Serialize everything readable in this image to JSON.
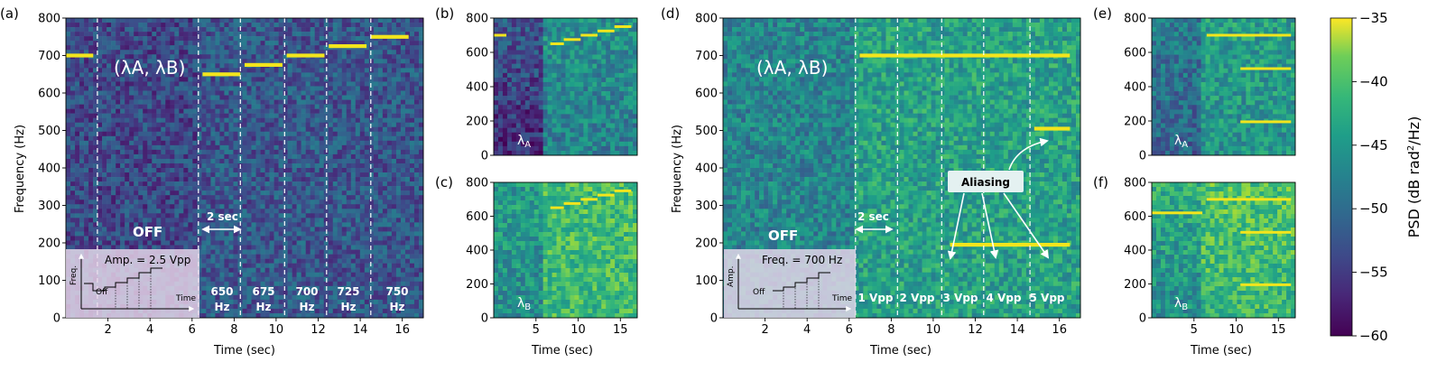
{
  "figure": {
    "colorbar": {
      "label": "PSD (dB rad²/Hz)",
      "label_main": "PSD (dB rad",
      "label_sup": "2",
      "label_end": "/Hz)",
      "min": -60,
      "max": -35,
      "ticks": [
        "−35",
        "−40",
        "−45",
        "−50",
        "−55",
        "−60"
      ],
      "colormap": "viridis"
    }
  },
  "chart_data": [
    {
      "panel": "(a)",
      "type": "heatmap",
      "xlabel": "Time (sec)",
      "ylabel": "Frequency (Hz)",
      "xlim": [
        0,
        17
      ],
      "ylim": [
        0,
        800
      ],
      "xticks": [
        "2",
        "4",
        "6",
        "8",
        "10",
        "12",
        "14",
        "16"
      ],
      "yticks": [
        "0",
        "100",
        "200",
        "300",
        "400",
        "500",
        "600",
        "700",
        "800"
      ],
      "grid": false,
      "background_level": -55,
      "tones": [
        {
          "t0": 0,
          "t1": 1.3,
          "freq": 700
        },
        {
          "t0": 6.5,
          "t1": 8.3,
          "freq": 650
        },
        {
          "t0": 8.5,
          "t1": 10.3,
          "freq": 675
        },
        {
          "t0": 10.5,
          "t1": 12.3,
          "freq": 700
        },
        {
          "t0": 12.5,
          "t1": 14.3,
          "freq": 725
        },
        {
          "t0": 14.5,
          "t1": 16.3,
          "freq": 750
        }
      ],
      "dividers": [
        1.5,
        6.3,
        8.3,
        10.4,
        12.4,
        14.5
      ],
      "annotations": {
        "lambda_label": "(λA, λB)",
        "off_label": "OFF",
        "duration_label": "2 sec",
        "inset_text": "Amp. = 2.5 Vpp",
        "inset_yaxis": "Freq.",
        "inset_xaxis": "Time",
        "inset_off": "Off",
        "segment_labels": [
          {
            "top": "650",
            "bottom": "Hz"
          },
          {
            "top": "675",
            "bottom": "Hz"
          },
          {
            "top": "700",
            "bottom": "Hz"
          },
          {
            "top": "725",
            "bottom": "Hz"
          },
          {
            "top": "750",
            "bottom": "Hz"
          }
        ]
      }
    },
    {
      "panel": "(b)",
      "type": "heatmap",
      "xlabel": "",
      "ylabel": "",
      "xlim": [
        0,
        17
      ],
      "ylim": [
        0,
        800
      ],
      "xticks": [],
      "yticks": [
        "0",
        "200",
        "400",
        "600",
        "800"
      ],
      "grid": false,
      "channel_label": "λA",
      "tones": [
        {
          "t0": 0,
          "t1": 1.5,
          "freq": 700
        },
        {
          "t0": 6.7,
          "t1": 8.3,
          "freq": 650
        },
        {
          "t0": 8.3,
          "t1": 10.3,
          "freq": 675
        },
        {
          "t0": 10.3,
          "t1": 12.3,
          "freq": 700
        },
        {
          "t0": 12.3,
          "t1": 14.3,
          "freq": 725
        },
        {
          "t0": 14.3,
          "t1": 16.3,
          "freq": 750
        }
      ]
    },
    {
      "panel": "(c)",
      "type": "heatmap",
      "xlabel": "Time (sec)",
      "ylabel": "",
      "xlim": [
        0,
        17
      ],
      "ylim": [
        0,
        800
      ],
      "xticks": [
        "5",
        "10",
        "15"
      ],
      "yticks": [
        "0",
        "200",
        "400",
        "600",
        "800"
      ],
      "grid": false,
      "channel_label": "λB",
      "tones": [
        {
          "t0": 6.7,
          "t1": 8.3,
          "freq": 650
        },
        {
          "t0": 8.3,
          "t1": 10.3,
          "freq": 675
        },
        {
          "t0": 10.3,
          "t1": 12.3,
          "freq": 700
        },
        {
          "t0": 12.3,
          "t1": 14.3,
          "freq": 725
        },
        {
          "t0": 14.3,
          "t1": 16.3,
          "freq": 750
        }
      ]
    },
    {
      "panel": "(d)",
      "type": "heatmap",
      "xlabel": "Time (sec)",
      "ylabel": "Frequency (Hz)",
      "xlim": [
        0,
        17
      ],
      "ylim": [
        0,
        800
      ],
      "xticks": [
        "2",
        "4",
        "6",
        "8",
        "10",
        "12",
        "14",
        "16"
      ],
      "yticks": [
        "0",
        "100",
        "200",
        "300",
        "400",
        "500",
        "600",
        "700",
        "800"
      ],
      "grid": false,
      "tones": [
        {
          "t0": 6.5,
          "t1": 16.5,
          "freq": 700
        },
        {
          "t0": 10.8,
          "t1": 16.5,
          "freq": 195
        },
        {
          "t0": 14.8,
          "t1": 16.5,
          "freq": 505
        }
      ],
      "dividers": [
        6.3,
        8.3,
        10.4,
        12.4,
        14.6
      ],
      "annotations": {
        "lambda_label": "(λA, λB)",
        "off_label": "OFF",
        "duration_label": "2 sec",
        "aliasing_label": "Aliasing",
        "inset_text": "Freq. = 700 Hz",
        "inset_yaxis": "Amp.",
        "inset_xaxis": "Time",
        "inset_off": "Off",
        "segment_labels": [
          "1 Vpp",
          "2 Vpp",
          "3 Vpp",
          "4 Vpp",
          "5 Vpp"
        ]
      }
    },
    {
      "panel": "(e)",
      "type": "heatmap",
      "xlabel": "",
      "ylabel": "",
      "xlim": [
        0,
        17
      ],
      "ylim": [
        0,
        800
      ],
      "xticks": [],
      "yticks": [
        "0",
        "200",
        "400",
        "600",
        "800"
      ],
      "grid": false,
      "channel_label": "λA",
      "tones": [
        {
          "t0": 6.5,
          "t1": 16.5,
          "freq": 700
        },
        {
          "t0": 10.5,
          "t1": 16.5,
          "freq": 505
        },
        {
          "t0": 10.5,
          "t1": 16.5,
          "freq": 195
        }
      ]
    },
    {
      "panel": "(f)",
      "type": "heatmap",
      "xlabel": "Time (sec)",
      "ylabel": "",
      "xlim": [
        0,
        17
      ],
      "ylim": [
        0,
        800
      ],
      "xticks": [
        "5",
        "10",
        "15"
      ],
      "yticks": [
        "0",
        "200",
        "400",
        "600",
        "800"
      ],
      "grid": false,
      "channel_label": "λB",
      "tones": [
        {
          "t0": 6.5,
          "t1": 16.5,
          "freq": 700
        },
        {
          "t0": 0,
          "t1": 6,
          "freq": 620
        },
        {
          "t0": 10.5,
          "t1": 16.5,
          "freq": 505
        },
        {
          "t0": 10.5,
          "t1": 16.5,
          "freq": 195
        }
      ]
    }
  ]
}
